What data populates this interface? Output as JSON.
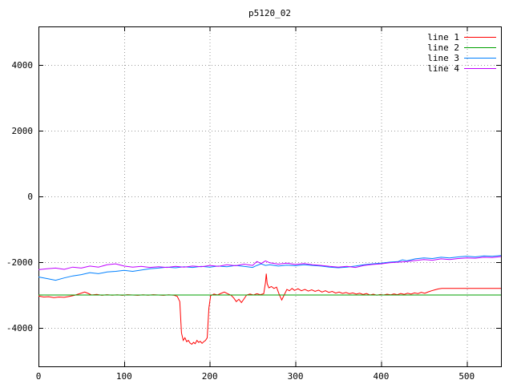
{
  "page": {
    "title": "p5120_02"
  },
  "chart_data": {
    "type": "line",
    "title": "p5120_02",
    "xlabel": "",
    "ylabel": "",
    "xlim": [
      0,
      540
    ],
    "ylim": [
      -5170,
      5170
    ],
    "xticks": [
      0,
      100,
      200,
      300,
      400,
      500
    ],
    "yticks": [
      -4000,
      -2000,
      0,
      2000,
      4000
    ],
    "grid": true,
    "legend_position": "top-right",
    "background_color": "#ffffff",
    "border_color": "#000000",
    "grid_color": "#9a9a9a",
    "series": [
      {
        "name": "line 1",
        "color": "#ff0000",
        "points": [
          [
            0,
            -3030
          ],
          [
            6,
            -3060
          ],
          [
            12,
            -3050
          ],
          [
            18,
            -3080
          ],
          [
            24,
            -3060
          ],
          [
            30,
            -3070
          ],
          [
            36,
            -3040
          ],
          [
            42,
            -3010
          ],
          [
            48,
            -2960
          ],
          [
            54,
            -2910
          ],
          [
            58,
            -2950
          ],
          [
            62,
            -3000
          ],
          [
            68,
            -2980
          ],
          [
            74,
            -3010
          ],
          [
            80,
            -2990
          ],
          [
            86,
            -3005
          ],
          [
            92,
            -2995
          ],
          [
            98,
            -3010
          ],
          [
            104,
            -2990
          ],
          [
            110,
            -3000
          ],
          [
            116,
            -3010
          ],
          [
            122,
            -2995
          ],
          [
            128,
            -3005
          ],
          [
            134,
            -2990
          ],
          [
            140,
            -3000
          ],
          [
            146,
            -3010
          ],
          [
            152,
            -2995
          ],
          [
            158,
            -3005
          ],
          [
            162,
            -3040
          ],
          [
            165,
            -3200
          ],
          [
            167,
            -4150
          ],
          [
            169,
            -4380
          ],
          [
            171,
            -4300
          ],
          [
            173,
            -4420
          ],
          [
            175,
            -4380
          ],
          [
            177,
            -4460
          ],
          [
            179,
            -4500
          ],
          [
            181,
            -4440
          ],
          [
            183,
            -4480
          ],
          [
            185,
            -4380
          ],
          [
            187,
            -4440
          ],
          [
            189,
            -4410
          ],
          [
            191,
            -4470
          ],
          [
            193,
            -4420
          ],
          [
            195,
            -4380
          ],
          [
            197,
            -4300
          ],
          [
            199,
            -3400
          ],
          [
            201,
            -3020
          ],
          [
            205,
            -2970
          ],
          [
            209,
            -3000
          ],
          [
            213,
            -2950
          ],
          [
            217,
            -2910
          ],
          [
            221,
            -2960
          ],
          [
            225,
            -3010
          ],
          [
            228,
            -3090
          ],
          [
            231,
            -3200
          ],
          [
            234,
            -3130
          ],
          [
            237,
            -3230
          ],
          [
            240,
            -3120
          ],
          [
            243,
            -3000
          ],
          [
            247,
            -2970
          ],
          [
            251,
            -3000
          ],
          [
            255,
            -2960
          ],
          [
            259,
            -2990
          ],
          [
            263,
            -2960
          ],
          [
            265,
            -2620
          ],
          [
            266,
            -2350
          ],
          [
            267,
            -2650
          ],
          [
            269,
            -2780
          ],
          [
            272,
            -2740
          ],
          [
            275,
            -2800
          ],
          [
            278,
            -2760
          ],
          [
            281,
            -2980
          ],
          [
            284,
            -3150
          ],
          [
            287,
            -2990
          ],
          [
            290,
            -2830
          ],
          [
            293,
            -2870
          ],
          [
            296,
            -2800
          ],
          [
            299,
            -2860
          ],
          [
            303,
            -2810
          ],
          [
            307,
            -2870
          ],
          [
            311,
            -2830
          ],
          [
            315,
            -2880
          ],
          [
            319,
            -2840
          ],
          [
            323,
            -2890
          ],
          [
            327,
            -2850
          ],
          [
            331,
            -2910
          ],
          [
            335,
            -2870
          ],
          [
            339,
            -2920
          ],
          [
            343,
            -2890
          ],
          [
            347,
            -2940
          ],
          [
            351,
            -2910
          ],
          [
            355,
            -2950
          ],
          [
            359,
            -2925
          ],
          [
            363,
            -2960
          ],
          [
            367,
            -2935
          ],
          [
            371,
            -2970
          ],
          [
            375,
            -2945
          ],
          [
            379,
            -2985
          ],
          [
            383,
            -2955
          ],
          [
            387,
            -3000
          ],
          [
            391,
            -2975
          ],
          [
            395,
            -3005
          ],
          [
            399,
            -2985
          ],
          [
            403,
            -3000
          ],
          [
            407,
            -2975
          ],
          [
            411,
            -2995
          ],
          [
            415,
            -2965
          ],
          [
            419,
            -2990
          ],
          [
            423,
            -2955
          ],
          [
            427,
            -2980
          ],
          [
            431,
            -2945
          ],
          [
            435,
            -2970
          ],
          [
            439,
            -2935
          ],
          [
            443,
            -2955
          ],
          [
            447,
            -2920
          ],
          [
            451,
            -2945
          ],
          [
            455,
            -2905
          ],
          [
            459,
            -2870
          ],
          [
            463,
            -2840
          ],
          [
            467,
            -2815
          ],
          [
            471,
            -2800
          ],
          [
            540,
            -2800
          ]
        ]
      },
      {
        "name": "line 2",
        "color": "#00a000",
        "points": [
          [
            0,
            -3000
          ],
          [
            540,
            -3000
          ]
        ]
      },
      {
        "name": "line 3",
        "color": "#0080ff",
        "points": [
          [
            0,
            -2450
          ],
          [
            10,
            -2500
          ],
          [
            20,
            -2550
          ],
          [
            30,
            -2480
          ],
          [
            40,
            -2420
          ],
          [
            50,
            -2380
          ],
          [
            60,
            -2320
          ],
          [
            70,
            -2350
          ],
          [
            80,
            -2300
          ],
          [
            90,
            -2280
          ],
          [
            100,
            -2250
          ],
          [
            110,
            -2280
          ],
          [
            120,
            -2240
          ],
          [
            130,
            -2200
          ],
          [
            140,
            -2180
          ],
          [
            150,
            -2150
          ],
          [
            160,
            -2170
          ],
          [
            170,
            -2140
          ],
          [
            180,
            -2160
          ],
          [
            190,
            -2130
          ],
          [
            200,
            -2150
          ],
          [
            210,
            -2120
          ],
          [
            220,
            -2140
          ],
          [
            230,
            -2100
          ],
          [
            240,
            -2130
          ],
          [
            250,
            -2160
          ],
          [
            255,
            -2100
          ],
          [
            260,
            -2050
          ],
          [
            265,
            -2100
          ],
          [
            270,
            -2080
          ],
          [
            280,
            -2120
          ],
          [
            290,
            -2090
          ],
          [
            300,
            -2110
          ],
          [
            310,
            -2080
          ],
          [
            320,
            -2100
          ],
          [
            330,
            -2120
          ],
          [
            340,
            -2150
          ],
          [
            350,
            -2170
          ],
          [
            360,
            -2150
          ],
          [
            370,
            -2120
          ],
          [
            380,
            -2080
          ],
          [
            390,
            -2050
          ],
          [
            400,
            -2030
          ],
          [
            410,
            -2000
          ],
          [
            420,
            -1980
          ],
          [
            425,
            -1930
          ],
          [
            430,
            -1960
          ],
          [
            440,
            -1900
          ],
          [
            450,
            -1870
          ],
          [
            460,
            -1890
          ],
          [
            470,
            -1850
          ],
          [
            480,
            -1870
          ],
          [
            490,
            -1840
          ],
          [
            500,
            -1820
          ],
          [
            510,
            -1840
          ],
          [
            520,
            -1810
          ],
          [
            530,
            -1820
          ],
          [
            540,
            -1800
          ]
        ]
      },
      {
        "name": "line 4",
        "color": "#c000ff",
        "points": [
          [
            0,
            -2230
          ],
          [
            10,
            -2200
          ],
          [
            20,
            -2180
          ],
          [
            30,
            -2220
          ],
          [
            40,
            -2150
          ],
          [
            50,
            -2180
          ],
          [
            60,
            -2120
          ],
          [
            70,
            -2150
          ],
          [
            80,
            -2080
          ],
          [
            90,
            -2050
          ],
          [
            100,
            -2120
          ],
          [
            110,
            -2150
          ],
          [
            120,
            -2130
          ],
          [
            130,
            -2160
          ],
          [
            140,
            -2140
          ],
          [
            150,
            -2160
          ],
          [
            160,
            -2130
          ],
          [
            170,
            -2150
          ],
          [
            180,
            -2120
          ],
          [
            190,
            -2140
          ],
          [
            200,
            -2100
          ],
          [
            210,
            -2130
          ],
          [
            220,
            -2080
          ],
          [
            230,
            -2110
          ],
          [
            240,
            -2060
          ],
          [
            250,
            -2100
          ],
          [
            255,
            -1980
          ],
          [
            260,
            -2040
          ],
          [
            265,
            -1960
          ],
          [
            270,
            -2020
          ],
          [
            280,
            -2060
          ],
          [
            290,
            -2030
          ],
          [
            300,
            -2070
          ],
          [
            310,
            -2040
          ],
          [
            320,
            -2080
          ],
          [
            330,
            -2100
          ],
          [
            340,
            -2130
          ],
          [
            350,
            -2150
          ],
          [
            360,
            -2130
          ],
          [
            370,
            -2160
          ],
          [
            380,
            -2100
          ],
          [
            390,
            -2070
          ],
          [
            400,
            -2050
          ],
          [
            410,
            -2020
          ],
          [
            420,
            -2000
          ],
          [
            430,
            -1980
          ],
          [
            440,
            -1950
          ],
          [
            450,
            -1920
          ],
          [
            460,
            -1940
          ],
          [
            470,
            -1900
          ],
          [
            480,
            -1920
          ],
          [
            490,
            -1890
          ],
          [
            500,
            -1870
          ],
          [
            510,
            -1880
          ],
          [
            520,
            -1850
          ],
          [
            530,
            -1860
          ],
          [
            540,
            -1830
          ]
        ]
      }
    ]
  }
}
